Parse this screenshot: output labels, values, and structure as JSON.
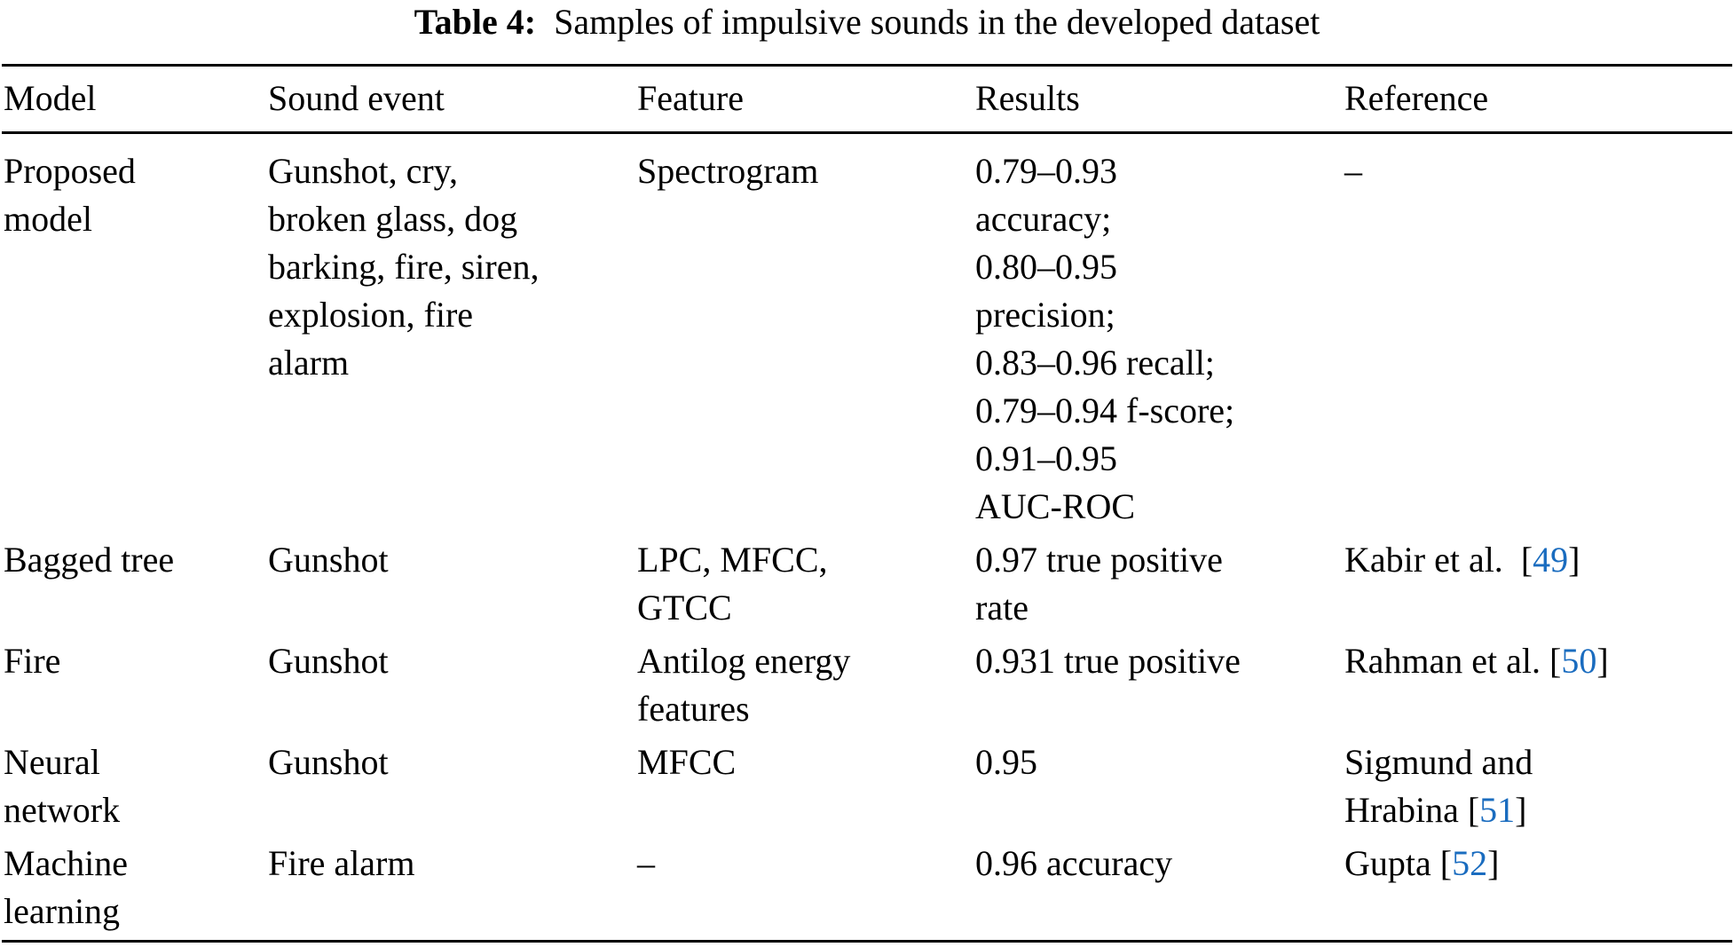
{
  "caption": {
    "label": "Table 4:",
    "text": "Samples of impulsive sounds in the developed dataset"
  },
  "colors": {
    "text": "#000000",
    "link": "#1a6cbf",
    "rule": "#000000"
  },
  "table": {
    "headers": [
      "Model",
      "Sound event",
      "Feature",
      "Results",
      "Reference"
    ],
    "rows": [
      {
        "model": [
          "Proposed",
          "model"
        ],
        "sound_event": [
          "Gunshot, cry,",
          "broken glass, dog",
          "barking, fire, siren,",
          "explosion, fire",
          "alarm"
        ],
        "feature": [
          "Spectrogram"
        ],
        "results": [
          "0.79–0.93",
          "accuracy;",
          "0.80–0.95",
          "precision;",
          "0.83–0.96 recall;",
          "0.79–0.94 f-score;",
          "0.91–0.95",
          "AUC-ROC"
        ],
        "reference": {
          "text": "–",
          "open": "",
          "cite": "",
          "close": ""
        }
      },
      {
        "model": [
          "Bagged tree"
        ],
        "sound_event": [
          "Gunshot"
        ],
        "feature": [
          "LPC, MFCC,",
          "GTCC"
        ],
        "results": [
          "0.97 true positive",
          "rate"
        ],
        "reference": {
          "text": "Kabir et al.  ",
          "open": "[",
          "cite": "49",
          "close": "]"
        }
      },
      {
        "model": [
          "Fire"
        ],
        "sound_event": [
          "Gunshot"
        ],
        "feature": [
          "Antilog energy",
          "features"
        ],
        "results": [
          "0.931 true positive"
        ],
        "reference": {
          "text": "Rahman et al. ",
          "open": "[",
          "cite": "50",
          "close": "]"
        }
      },
      {
        "model": [
          "Neural",
          "network"
        ],
        "sound_event": [
          "Gunshot"
        ],
        "feature": [
          "MFCC"
        ],
        "results": [
          "0.95"
        ],
        "reference": {
          "text_line1": "Sigmund and",
          "text": "Hrabina ",
          "open": "[",
          "cite": "51",
          "close": "]"
        }
      },
      {
        "model": [
          "Machine",
          "learning"
        ],
        "sound_event": [
          "Fire alarm"
        ],
        "feature": [
          "–"
        ],
        "results": [
          "0.96 accuracy"
        ],
        "reference": {
          "text": "Gupta ",
          "open": "[",
          "cite": "52",
          "close": "]"
        }
      }
    ]
  }
}
